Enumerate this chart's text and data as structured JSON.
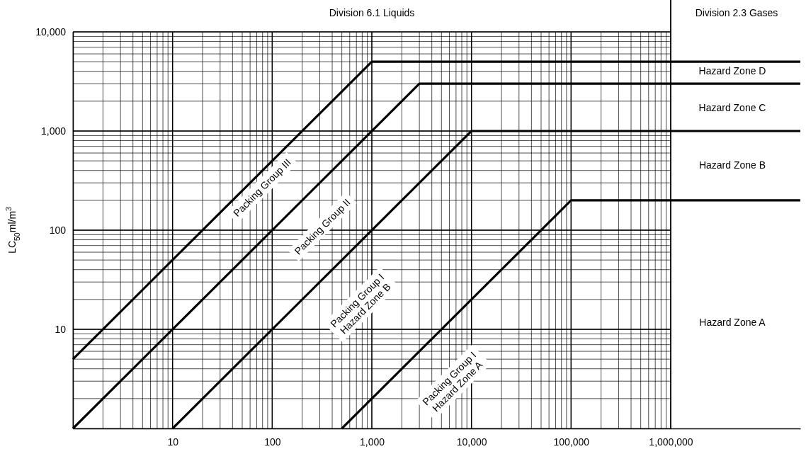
{
  "chart_data": {
    "type": "line",
    "ylabel": "LC$_{50}$ml/m$^{3}$",
    "log": "xy",
    "grid": true,
    "line_style": "solid",
    "xlim": [
      1,
      20000000
    ],
    "ylim": [
      1,
      10000
    ],
    "xticks": [
      10,
      100,
      {
        "value": 1000,
        "label": "1,000"
      },
      {
        "value": 10000,
        "label": "10,000"
      },
      {
        "value": 100000,
        "label": "100,000"
      },
      {
        "value": 1000000,
        "label": "1,000,000"
      }
    ],
    "yticks": [
      10,
      100,
      {
        "value": 1000,
        "label": "1,000"
      },
      {
        "value": 10000,
        "label": "10,000"
      }
    ],
    "series": [
      {
        "color": "#000000",
        "x": [
          1,
          1000,
          20000000
        ],
        "values": [
          5,
          5000,
          5000
        ]
      },
      {
        "color": "#000000",
        "x": [
          1,
          3000,
          20000000
        ],
        "values": [
          1,
          3000,
          3000
        ]
      },
      {
        "color": "#000000",
        "x": [
          10,
          10000,
          20000000
        ],
        "values": [
          1,
          1000,
          1000
        ]
      },
      {
        "color": "#000000",
        "x": [
          500,
          100000,
          20000000
        ],
        "values": [
          1,
          200,
          200
        ]
      }
    ],
    "ref_lines": [
      {
        "axis": "x",
        "value": 1000000,
        "color": "#000000"
      }
    ],
    "annotations": [
      "Division 6.1 Liquids",
      "Division 2.3 Gases",
      "Hazard Zone D",
      "Hazard Zone C",
      "Hazard Zone B",
      "Hazard Zone A",
      "Packing Group III",
      "Packing Group II",
      "Packing Group I\nHazard Zone B",
      "Packing Group I\nHazard Zone A"
    ]
  }
}
